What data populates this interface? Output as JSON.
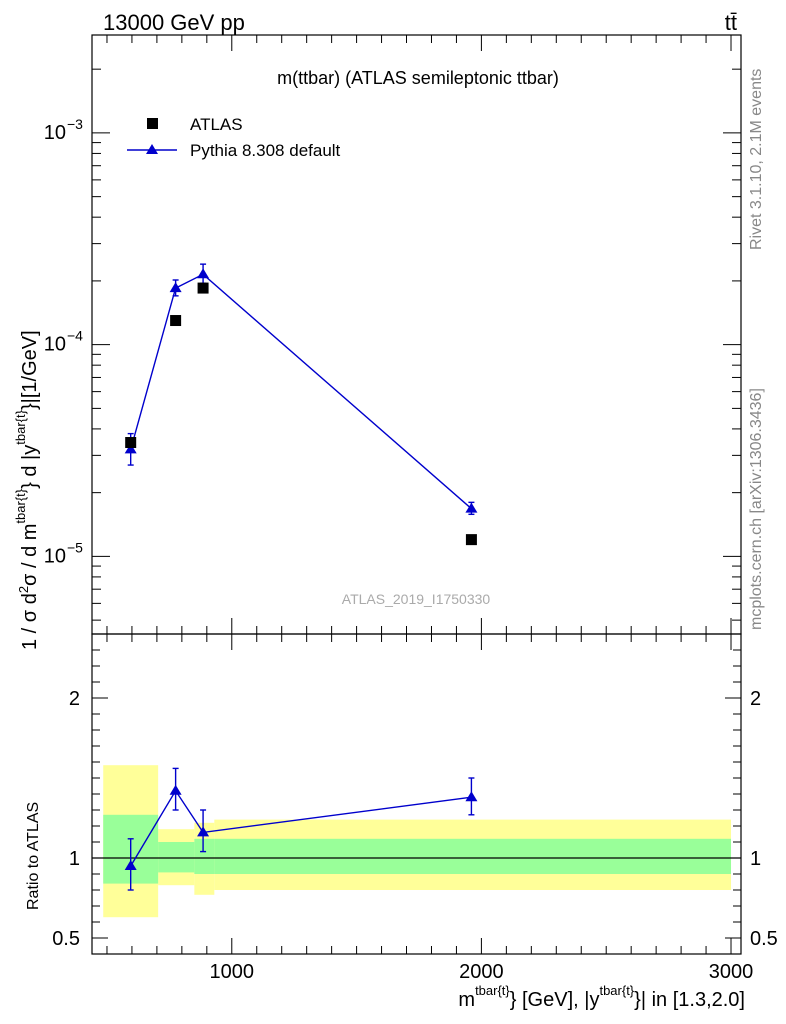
{
  "header": {
    "left": "13000 GeV pp",
    "right": "tt̄"
  },
  "side": {
    "rivet": "Rivet 3.1.10,  2.1M events",
    "mcplots": "mcplots.cern.ch [arXiv:1306.3436]"
  },
  "chart_data": [
    {
      "type": "scatter",
      "title": "m(ttbar) (ATLAS semileptonic ttbar)",
      "watermark": "ATLAS_2019_I1750330",
      "ylabel": "1 / σ d²σ / d m^{tbar{t}} d |y^{tbar{t}}|[1/GeV]",
      "yscale": "log",
      "ylim": [
        4.3e-06,
        0.0029
      ],
      "xlim": [
        440,
        3040
      ],
      "y_ticks": [
        {
          "value": 1e-05,
          "label": "10",
          "exp": "−5"
        },
        {
          "value": 0.0001,
          "label": "10",
          "exp": "−4"
        },
        {
          "value": 0.001,
          "label": "10",
          "exp": "−3"
        }
      ],
      "legend_position": "top-left",
      "series": [
        {
          "name": "ATLAS",
          "color": "#000000",
          "marker": "square",
          "points": [
            {
              "x": 595,
              "y": 3.45e-05,
              "xlo": 440,
              "xhi": 700
            },
            {
              "x": 775,
              "y": 0.00013,
              "xlo": 700,
              "xhi": 850
            },
            {
              "x": 885,
              "y": 0.000185,
              "xlo": 850,
              "xhi": 920
            },
            {
              "x": 1960,
              "y": 1.2e-05,
              "xlo": 920,
              "xhi": 3000
            }
          ]
        },
        {
          "name": "Pythia 8.308 default",
          "color": "#0000cc",
          "marker": "triangle",
          "points": [
            {
              "x": 595,
              "y": 3.2e-05,
              "ylo": 2.7e-05,
              "yhi": 3.8e-05
            },
            {
              "x": 775,
              "y": 0.000185,
              "ylo": 0.00017,
              "yhi": 0.000202
            },
            {
              "x": 885,
              "y": 0.000215,
              "ylo": 0.000195,
              "yhi": 0.00024
            },
            {
              "x": 1960,
              "y": 1.68e-05,
              "ylo": 1.58e-05,
              "yhi": 1.8e-05
            }
          ]
        }
      ]
    },
    {
      "type": "scatter",
      "ylabel": "Ratio to ATLAS",
      "xlabel": "m^{tbar{t}} [GeV], |y^{tbar{t}}| in [1.3,2.0]",
      "xlim": [
        440,
        3040
      ],
      "ylim": [
        0.4,
        2.4
      ],
      "x_ticks": [
        1000,
        2000,
        3000
      ],
      "y_tick_labels": [
        {
          "value": 0.5,
          "label": "0.5"
        },
        {
          "value": 1,
          "label": "1"
        },
        {
          "value": 2,
          "label": "2"
        }
      ],
      "bands": [
        {
          "xlo": 485,
          "xhi": 705,
          "green": [
            0.84,
            1.27
          ],
          "yellow": [
            0.63,
            1.58
          ]
        },
        {
          "xlo": 705,
          "xhi": 850,
          "green": [
            0.91,
            1.1
          ],
          "yellow": [
            0.83,
            1.18
          ]
        },
        {
          "xlo": 850,
          "xhi": 930,
          "green": [
            0.9,
            1.12
          ],
          "yellow": [
            0.77,
            1.22
          ]
        },
        {
          "xlo": 930,
          "xhi": 3000,
          "green": [
            0.9,
            1.12
          ],
          "yellow": [
            0.8,
            1.24
          ]
        }
      ],
      "series": [
        {
          "name": "Pythia 8.308 default",
          "color": "#0000cc",
          "points": [
            {
              "x": 595,
              "y": 0.95,
              "ylo": 0.8,
              "yhi": 1.12
            },
            {
              "x": 775,
              "y": 1.42,
              "ylo": 1.3,
              "yhi": 1.56
            },
            {
              "x": 885,
              "y": 1.16,
              "ylo": 1.04,
              "yhi": 1.3
            },
            {
              "x": 1960,
              "y": 1.38,
              "ylo": 1.27,
              "yhi": 1.5
            }
          ]
        }
      ],
      "reference_line": 1
    }
  ]
}
